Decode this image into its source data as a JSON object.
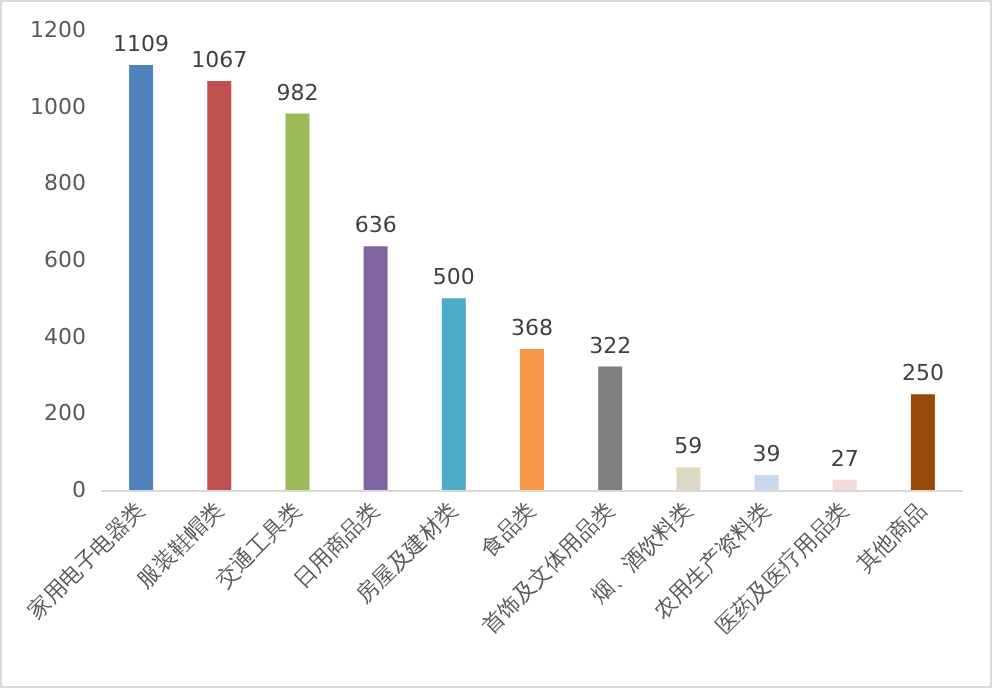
{
  "chart_data": {
    "type": "bar",
    "categories": [
      "家用电子电器类",
      "服装鞋帽类",
      "交通工具类",
      "日用商品类",
      "房屋及建材类",
      "食品类",
      "首饰及文体用品类",
      "烟、酒饮料类",
      "农用生产资料类",
      "医药及医疗用品类",
      "其他商品"
    ],
    "values": [
      1109,
      1067,
      982,
      636,
      500,
      368,
      322,
      59,
      39,
      27,
      250
    ],
    "colors": [
      "#4f81bd",
      "#c0504d",
      "#9bbb59",
      "#8064a2",
      "#4bacc6",
      "#f79646",
      "#7f7f7f",
      "#ddd9c3",
      "#c6d9f1",
      "#f2dcdb",
      "#984807"
    ],
    "ylim": [
      0,
      1200
    ],
    "yticks": [
      0,
      200,
      400,
      600,
      800,
      1000,
      1200
    ],
    "grid": false,
    "data_labels": true
  }
}
